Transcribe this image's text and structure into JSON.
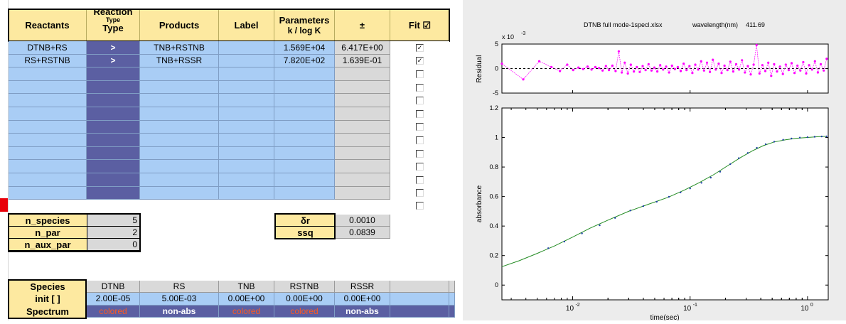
{
  "sheet": {
    "headers": {
      "reactants": "Reactants",
      "reaction_type_line1": "Reaction",
      "reaction_type_line2": "Type",
      "reaction_type_line3": "Type",
      "products": "Products",
      "label": "Label",
      "parameters_line1": "Parameters",
      "parameters_line2": "k / log K",
      "pm": "±",
      "fit": "Fit ☑"
    },
    "reactions": [
      {
        "reactants": "DTNB+RS",
        "type": ">",
        "products": "TNB+RSTNB",
        "label": "",
        "param": "1.569E+04",
        "pm": "6.417E+00",
        "fit": true
      },
      {
        "reactants": "RS+RSTNB",
        "type": ">",
        "products": "TNB+RSSR",
        "label": "",
        "param": "7.820E+02",
        "pm": "1.639E-01",
        "fit": true
      }
    ],
    "counts": [
      {
        "label": "n_species",
        "value": "5"
      },
      {
        "label": "n_par",
        "value": "2"
      },
      {
        "label": "n_aux_par",
        "value": "0"
      }
    ],
    "stats": [
      {
        "label": "δr",
        "value": "0.0010"
      },
      {
        "label": "ssq",
        "value": "0.0839"
      }
    ],
    "species_header": "Species",
    "init_label": "init [ ]",
    "spectrum_label": "Spectrum",
    "species": [
      {
        "name": "DTNB",
        "init": "2.00E-05",
        "spectrum": "colored",
        "colored": true
      },
      {
        "name": "RS",
        "init": "5.00E-03",
        "spectrum": "non-abs",
        "colored": false
      },
      {
        "name": "TNB",
        "init": "0.00E+00",
        "spectrum": "colored",
        "colored": true
      },
      {
        "name": "RSTNB",
        "init": "0.00E+00",
        "spectrum": "colored",
        "colored": true
      },
      {
        "name": "RSSR",
        "init": "0.00E+00",
        "spectrum": "non-abs",
        "colored": false
      }
    ]
  },
  "plot_header": {
    "file": "DTNB full mode-1specl.xlsx",
    "wavelength_label": "wavelength(nm)",
    "wavelength_value": "411.69"
  },
  "colors": {
    "residual": "#ff00ff",
    "fit_line": "#228b22",
    "data_points": "#1f3fa8",
    "header_yellow": "#fde9a0",
    "reaction_blue": "#a9cdf5",
    "type_purple": "#5b5fa2"
  },
  "chart_data": [
    {
      "type": "scatter",
      "title": "",
      "xlabel": "",
      "ylabel": "Residual",
      "y_multiplier": "x 10",
      "y_multiplier_exp": "-3",
      "x_scale": "log",
      "xlim": [
        0.0025,
        1.5
      ],
      "ylim": [
        -5,
        5
      ],
      "yticks": [
        -5,
        0,
        5
      ],
      "zero_line": "dashed",
      "series": [
        {
          "x": [
            0.0025,
            0.0038,
            0.0052,
            0.0066,
            0.0078,
            0.009,
            0.0101,
            0.0112,
            0.0123,
            0.0134,
            0.0145,
            0.0156,
            0.0168,
            0.018,
            0.0192,
            0.0204,
            0.0218,
            0.0232,
            0.0247,
            0.0262,
            0.0278,
            0.0295,
            0.0313,
            0.0332,
            0.0352,
            0.0373,
            0.0395,
            0.0418,
            0.0443,
            0.0469,
            0.0497,
            0.0526,
            0.0557,
            0.059,
            0.0625,
            0.0662,
            0.0701,
            0.0742,
            0.0786,
            0.0832,
            0.0881,
            0.0933,
            0.0988,
            0.1046,
            0.1108,
            0.1173,
            0.1242,
            0.1315,
            0.1393,
            0.1475,
            0.1562,
            0.1654,
            0.1751,
            0.1854,
            0.1963,
            0.2079,
            0.2201,
            0.2331,
            0.2468,
            0.2613,
            0.2767,
            0.293,
            0.3102,
            0.3285,
            0.3478,
            0.3683,
            0.39,
            0.4129,
            0.4372,
            0.463,
            0.4902,
            0.5191,
            0.5497,
            0.582,
            0.6163,
            0.6526,
            0.691,
            0.7317,
            0.7748,
            0.8204,
            0.8687,
            0.9199,
            0.974,
            1.0314,
            1.0921,
            1.1564,
            1.2245,
            1.2966,
            1.373,
            1.4539
          ],
          "y": [
            1.0,
            -2.2,
            1.5,
            0.3,
            -0.5,
            0.8,
            -0.3,
            0.2,
            -0.1,
            0.4,
            -0.2,
            0.3,
            0.1,
            -0.4,
            0.5,
            -0.3,
            0.6,
            -0.5,
            3.5,
            -0.8,
            1.2,
            -1.0,
            0.8,
            -0.6,
            0.3,
            -0.7,
            0.5,
            -0.3,
            0.9,
            -0.4,
            0.2,
            -0.6,
            0.7,
            -0.2,
            0.4,
            -0.8,
            0.6,
            -0.1,
            0.3,
            -0.5,
            1.0,
            -0.3,
            0.5,
            -0.9,
            0.8,
            -0.2,
            1.5,
            -0.4,
            1.2,
            -0.7,
            1.8,
            -0.2,
            1.0,
            -0.9,
            0.6,
            -0.3,
            1.4,
            -0.6,
            0.9,
            -0.2,
            1.7,
            -0.8,
            0.5,
            -1.2,
            0.8,
            4.8,
            -1.0,
            0.7,
            -0.5,
            1.2,
            -1.5,
            0.9,
            -0.6,
            0.4,
            -1.1,
            0.8,
            -0.3,
            1.1,
            -0.9,
            0.6,
            -0.4,
            1.3,
            -1.0,
            0.7,
            -0.2,
            1.5,
            -0.8,
            0.9,
            -0.4,
            2.0
          ]
        }
      ]
    },
    {
      "type": "line",
      "title": "",
      "xlabel": "time(sec)",
      "ylabel": "absorbance",
      "x_scale": "log",
      "xlim": [
        0.0025,
        1.5
      ],
      "ylim": [
        -0.1,
        1.2
      ],
      "yticks": [
        0,
        0.2,
        0.4,
        0.6,
        0.8,
        1,
        1.2
      ],
      "xticks": [
        0.01,
        0.1,
        1
      ],
      "xtick_labels": [
        "10",
        "10",
        "10"
      ],
      "xtick_exponents": [
        "-2",
        "-1",
        "0"
      ],
      "series": [
        {
          "style": "fit-line",
          "x": [
            0.0025,
            0.0035,
            0.005,
            0.007,
            0.01,
            0.014,
            0.02,
            0.03,
            0.045,
            0.065,
            0.09,
            0.12,
            0.16,
            0.21,
            0.27,
            0.34,
            0.42,
            0.52,
            0.65,
            0.8,
            1.0,
            1.2,
            1.45
          ],
          "y": [
            0.125,
            0.165,
            0.215,
            0.265,
            0.325,
            0.385,
            0.44,
            0.5,
            0.55,
            0.595,
            0.645,
            0.695,
            0.75,
            0.81,
            0.865,
            0.91,
            0.945,
            0.97,
            0.985,
            0.995,
            1.0,
            1.005,
            1.008
          ]
        },
        {
          "style": "data-points",
          "x": [
            0.0062,
            0.0085,
            0.012,
            0.017,
            0.023,
            0.031,
            0.04,
            0.052,
            0.066,
            0.083,
            0.1,
            0.125,
            0.15,
            0.18,
            0.22,
            0.26,
            0.31,
            0.37,
            0.44,
            0.52,
            0.62,
            0.73,
            0.86,
            1.0,
            1.15,
            1.32,
            1.45
          ],
          "y": [
            0.25,
            0.295,
            0.35,
            0.405,
            0.455,
            0.505,
            0.535,
            0.565,
            0.598,
            0.628,
            0.655,
            0.693,
            0.728,
            0.768,
            0.82,
            0.86,
            0.895,
            0.93,
            0.955,
            0.972,
            0.985,
            0.993,
            0.999,
            1.002,
            1.005,
            1.007,
            1.008
          ]
        }
      ]
    }
  ]
}
